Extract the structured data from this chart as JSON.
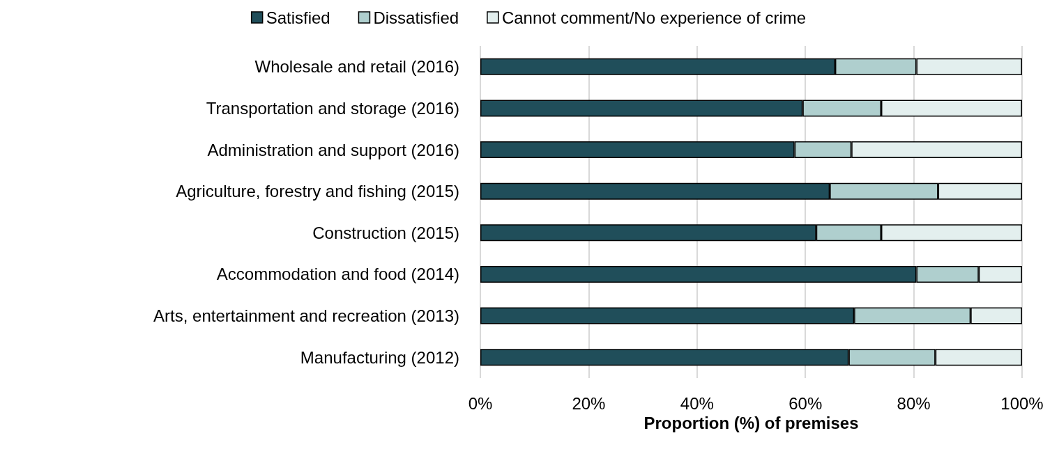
{
  "chart_data": {
    "type": "bar",
    "orientation": "horizontal",
    "stacked": true,
    "categories": [
      "Wholesale and retail (2016)",
      "Transportation and storage (2016)",
      "Administration and support (2016)",
      "Agriculture, forestry and fishing (2015)",
      "Construction (2015)",
      "Accommodation and food (2014)",
      "Arts, entertainment and recreation (2013)",
      "Manufacturing (2012)"
    ],
    "series": [
      {
        "name": "Satisfied",
        "color": "#204e5a",
        "values": [
          65.5,
          59.5,
          58,
          64.5,
          62,
          80.5,
          69,
          68
        ]
      },
      {
        "name": "Dissatisfied",
        "color": "#afcfce",
        "values": [
          15,
          14.5,
          10.5,
          20,
          12,
          11.5,
          21.5,
          16
        ]
      },
      {
        "name": "Cannot comment/No experience of crime",
        "color": "#e3efee",
        "values": [
          19.5,
          26,
          31.5,
          15.5,
          26,
          8,
          9.5,
          16
        ]
      }
    ],
    "xlabel": "Proportion (%) of premises",
    "xlim": [
      0,
      100
    ],
    "xticks": [
      {
        "value": 0,
        "label": "0%"
      },
      {
        "value": 20,
        "label": "20%"
      },
      {
        "value": 40,
        "label": "40%"
      },
      {
        "value": 60,
        "label": "60%"
      },
      {
        "value": 80,
        "label": "80%"
      },
      {
        "value": 100,
        "label": "100%"
      }
    ],
    "grid": "x",
    "legend": "top"
  }
}
